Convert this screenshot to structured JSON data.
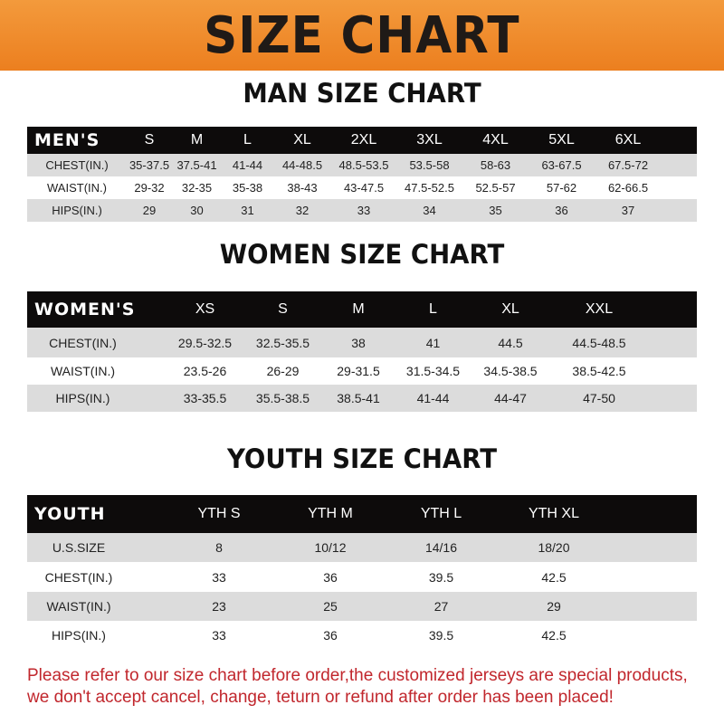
{
  "banner_title": "SIZE CHART",
  "note": [
    "Please refer to our size chart before order,the customized jerseys are special products,",
    "we don't accept cancel, change, teturn or refund after order has been placed!"
  ],
  "colors": {
    "banner": "#ef8a2a",
    "header_row": "#0d0b0b",
    "stripe": "#dcdcdc",
    "note": "#c1272d"
  },
  "tables": [
    {
      "title": "MAN SIZE CHART",
      "headers": [
        "MEN'S",
        "S",
        "M",
        "L",
        "XL",
        "2XL",
        "3XL",
        "4XL",
        "5XL",
        "6XL"
      ],
      "rows": [
        [
          "CHEST(IN.)",
          "35-37.5",
          "37.5-41",
          "41-44",
          "44-48.5",
          "48.5-53.5",
          "53.5-58",
          "58-63",
          "63-67.5",
          "67.5-72"
        ],
        [
          "WAIST(IN.)",
          "29-32",
          "32-35",
          "35-38",
          "38-43",
          "43-47.5",
          "47.5-52.5",
          "52.5-57",
          "57-62",
          "62-66.5"
        ],
        [
          "HIPS(IN.)",
          "29",
          "30",
          "31",
          "32",
          "33",
          "34",
          "35",
          "36",
          "37"
        ]
      ]
    },
    {
      "title": "WOMEN SIZE CHART",
      "headers": [
        "WOMEN'S",
        "XS",
        "S",
        "M",
        "L",
        "XL",
        "XXL"
      ],
      "rows": [
        [
          "CHEST(IN.)",
          "29.5-32.5",
          "32.5-35.5",
          "38",
          "41",
          "44.5",
          "44.5-48.5"
        ],
        [
          "WAIST(IN.)",
          "23.5-26",
          "26-29",
          "29-31.5",
          "31.5-34.5",
          "34.5-38.5",
          "38.5-42.5"
        ],
        [
          "HIPS(IN.)",
          "33-35.5",
          "35.5-38.5",
          "38.5-41",
          "41-44",
          "44-47",
          "47-50"
        ]
      ]
    },
    {
      "title": "YOUTH SIZE CHART",
      "headers": [
        "YOUTH",
        "YTH S",
        "YTH M",
        "YTH L",
        "YTH XL"
      ],
      "rows": [
        [
          "U.S.SIZE",
          "8",
          "10/12",
          "14/16",
          "18/20"
        ],
        [
          "CHEST(IN.)",
          "33",
          "36",
          "39.5",
          "42.5"
        ],
        [
          "WAIST(IN.)",
          "23",
          "25",
          "27",
          "29"
        ],
        [
          "HIPS(IN.)",
          "33",
          "36",
          "39.5",
          "42.5"
        ]
      ]
    }
  ]
}
